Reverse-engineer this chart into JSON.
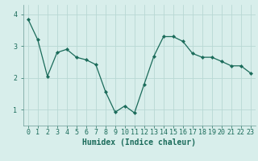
{
  "x": [
    0,
    1,
    2,
    3,
    4,
    5,
    6,
    7,
    8,
    9,
    10,
    11,
    12,
    13,
    14,
    15,
    16,
    17,
    18,
    19,
    20,
    21,
    22,
    23
  ],
  "y": [
    3.85,
    3.2,
    2.05,
    2.8,
    2.9,
    2.65,
    2.57,
    2.42,
    1.57,
    0.92,
    1.12,
    0.9,
    1.8,
    2.68,
    3.3,
    3.3,
    3.15,
    2.77,
    2.65,
    2.65,
    2.52,
    2.38,
    2.38,
    2.15
  ],
  "line_color": "#1a6b5a",
  "marker": "D",
  "marker_size": 2.2,
  "bg_color": "#d8eeeb",
  "grid_color": "#b8d8d4",
  "axis_color": "#6a9a96",
  "xlabel": "Humidex (Indice chaleur)",
  "xlabel_fontsize": 7,
  "tick_fontsize": 6,
  "ylim": [
    0.5,
    4.3
  ],
  "yticks": [
    1,
    2,
    3,
    4
  ],
  "xlim": [
    -0.5,
    23.5
  ],
  "line_width": 0.9
}
